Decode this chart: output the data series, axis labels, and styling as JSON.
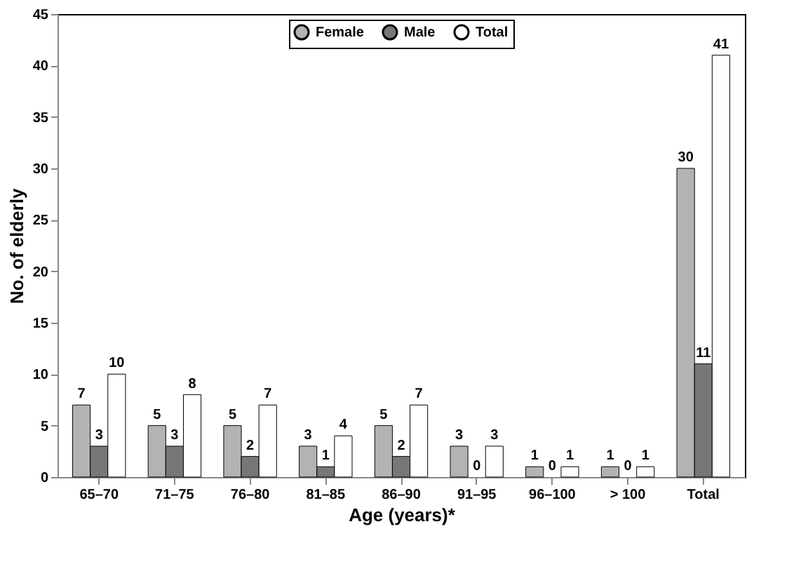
{
  "chart_data": {
    "type": "bar",
    "xlabel": "Age (years)*",
    "ylabel": "No. of elderly",
    "categories": [
      "65–70",
      "71–75",
      "76–80",
      "81–85",
      "86–90",
      "91–95",
      "96–100",
      "> 100",
      "Total"
    ],
    "series": [
      {
        "name": "Female",
        "color": "#b3b3b3",
        "values": [
          7,
          5,
          5,
          3,
          5,
          3,
          1,
          1,
          30
        ]
      },
      {
        "name": "Male",
        "color": "#777777",
        "values": [
          3,
          3,
          2,
          1,
          2,
          0,
          0,
          0,
          11
        ]
      },
      {
        "name": "Total",
        "color": "#ffffff",
        "values": [
          10,
          8,
          7,
          4,
          7,
          3,
          1,
          1,
          41
        ]
      }
    ],
    "ylim": [
      0,
      45
    ],
    "yticks": [
      0,
      5,
      10,
      15,
      20,
      25,
      30,
      35,
      40,
      45
    ],
    "grid": false,
    "legend": "top",
    "data_labels": true
  }
}
